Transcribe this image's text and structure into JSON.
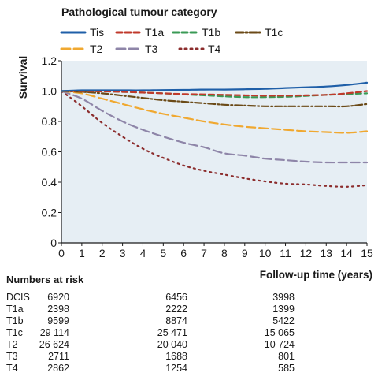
{
  "chart_data": {
    "type": "line",
    "legend_title": "Pathological tumour category",
    "legend_position": "top",
    "ylabel": "Survival",
    "xlabel": "Follow-up time (years)",
    "xlim": [
      0,
      15
    ],
    "ylim": [
      0,
      1.2
    ],
    "x_ticks": [
      "0",
      "1",
      "2",
      "3",
      "4",
      "5",
      "6",
      "7",
      "8",
      "9",
      "10",
      "11",
      "12",
      "13",
      "14",
      "15"
    ],
    "y_ticks": [
      "0",
      "0.2",
      "0.4",
      "0.6",
      "0.8",
      "1.0",
      "1.2"
    ],
    "x": [
      0,
      1,
      2,
      3,
      4,
      5,
      6,
      7,
      8,
      9,
      10,
      11,
      12,
      13,
      14,
      15
    ],
    "grid": false,
    "background": "#e6eef4",
    "series": [
      {
        "name": "Tis",
        "color": "#1f5fa8",
        "dash": "solid",
        "values": [
          1.0,
          1.005,
          1.005,
          1.005,
          1.005,
          1.007,
          1.008,
          1.01,
          1.01,
          1.012,
          1.015,
          1.02,
          1.025,
          1.03,
          1.04,
          1.055
        ]
      },
      {
        "name": "T1a",
        "color": "#c0392b",
        "dash": "dash",
        "values": [
          1.0,
          1.0,
          0.998,
          0.995,
          0.99,
          0.985,
          0.98,
          0.978,
          0.975,
          0.972,
          0.97,
          0.97,
          0.972,
          0.975,
          0.985,
          1.0
        ]
      },
      {
        "name": "T1b",
        "color": "#3a9a55",
        "dash": "dash",
        "values": [
          1.0,
          1.0,
          0.998,
          0.995,
          0.99,
          0.985,
          0.978,
          0.972,
          0.965,
          0.96,
          0.96,
          0.962,
          0.968,
          0.975,
          0.98,
          0.985
        ]
      },
      {
        "name": "T1c",
        "color": "#6b4a17",
        "dash": "dashdot",
        "values": [
          1.0,
          0.995,
          0.985,
          0.97,
          0.955,
          0.94,
          0.93,
          0.92,
          0.91,
          0.905,
          0.9,
          0.9,
          0.9,
          0.9,
          0.9,
          0.915
        ]
      },
      {
        "name": "T2",
        "color": "#f0a830",
        "dash": "longdash",
        "values": [
          1.0,
          0.985,
          0.95,
          0.915,
          0.88,
          0.85,
          0.825,
          0.8,
          0.78,
          0.765,
          0.755,
          0.745,
          0.735,
          0.73,
          0.725,
          0.735
        ]
      },
      {
        "name": "T3",
        "color": "#8e85a8",
        "dash": "longdash",
        "values": [
          1.0,
          0.95,
          0.87,
          0.8,
          0.745,
          0.7,
          0.66,
          0.63,
          0.59,
          0.575,
          0.555,
          0.545,
          0.535,
          0.53,
          0.53,
          0.53
        ]
      },
      {
        "name": "T4",
        "color": "#8c2d2d",
        "dash": "dot",
        "values": [
          1.0,
          0.9,
          0.79,
          0.7,
          0.62,
          0.56,
          0.51,
          0.475,
          0.45,
          0.425,
          0.405,
          0.39,
          0.385,
          0.375,
          0.37,
          0.38
        ]
      }
    ]
  },
  "risk_table": {
    "title": "Numbers at risk",
    "rows": [
      {
        "label": "DCIS",
        "values": [
          "6920",
          "6456",
          "3998"
        ]
      },
      {
        "label": "T1a",
        "values": [
          "2398",
          "2222",
          "1399"
        ]
      },
      {
        "label": "T1b",
        "values": [
          "9599",
          "8874",
          "5422"
        ]
      },
      {
        "label": "T1c",
        "values": [
          "29 114",
          "25 471",
          "15 065"
        ]
      },
      {
        "label": "T2",
        "values": [
          "26 624",
          "20 040",
          "10 724"
        ]
      },
      {
        "label": "T3",
        "values": [
          "2711",
          "1688",
          "801"
        ]
      },
      {
        "label": "T4",
        "values": [
          "2862",
          "1254",
          "585"
        ]
      }
    ]
  }
}
